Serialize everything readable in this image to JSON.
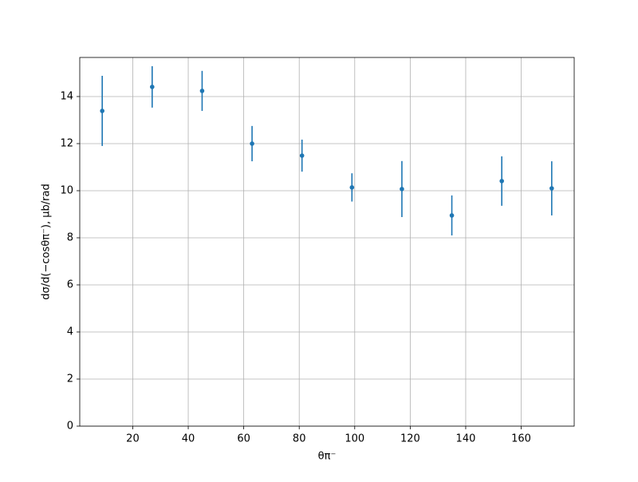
{
  "chart_data": {
    "type": "errorbar",
    "x_label": "θπ⁻",
    "y_label": "dσ/d(−cosθπ⁻), μb/rad",
    "x": [
      9,
      27,
      45,
      63,
      81,
      99,
      117,
      135,
      153,
      171
    ],
    "values": [
      13.39,
      14.41,
      14.24,
      12.0,
      11.49,
      10.14,
      10.07,
      8.95,
      10.41,
      10.1
    ],
    "errors": [
      1.49,
      0.88,
      0.85,
      0.75,
      0.68,
      0.6,
      1.19,
      0.85,
      1.05,
      1.15
    ],
    "color": "#1f77b4",
    "xlim": [
      0.9,
      179.1
    ],
    "ylim": [
      0,
      15.66
    ],
    "xticks": [
      20,
      40,
      60,
      80,
      100,
      120,
      140,
      160
    ],
    "yticks": [
      0,
      2,
      4,
      6,
      8,
      10,
      12,
      14
    ],
    "grid": true
  }
}
